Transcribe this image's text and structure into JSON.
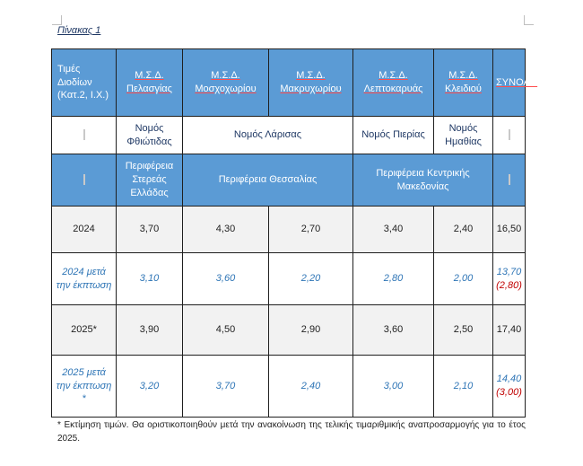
{
  "caption": "Πίνακας 1",
  "header": {
    "first": "Τιμές Διοδίων (Κατ.2, Ι.Χ.)",
    "stations": [
      "Μ.Σ.Δ. Πελασγίας",
      "Μ.Σ.Δ. Μοσχοχωρίου",
      "Μ.Σ.Δ. Μακρυχωρίου",
      "Μ.Σ.Δ. Λεπτοκαρυάς",
      "Μ.Σ.Δ. Κλειδιού"
    ],
    "total": "ΣΥΝΟΛΟ"
  },
  "prefectures": [
    "Νομός Φθιώτιδας",
    "Νομός Λάρισας",
    "Νομός Πιερίας",
    "Νομός Ημαθίας"
  ],
  "regions": [
    "Περιφέρεια Στερεάς Ελλάδας",
    "Περιφέρεια Θεσσαλίας",
    "Περιφέρεια Κεντρικής Μακεδονίας"
  ],
  "rows": {
    "y2024": {
      "label": "2024",
      "values": [
        "3,70",
        "4,30",
        "2,70",
        "3,40",
        "2,40"
      ],
      "total": "16,50"
    },
    "d2024": {
      "label": "2024 μετά την έκπτωση",
      "values": [
        "3,10",
        "3,60",
        "2,20",
        "2,80",
        "2,00"
      ],
      "total": "13,70",
      "diff": "(2,80)"
    },
    "y2025": {
      "label": "2025*",
      "values": [
        "3,90",
        "4,50",
        "2,90",
        "3,60",
        "2,50"
      ],
      "total": "17,40"
    },
    "d2025": {
      "label": "2025 μετά την έκπτωση *",
      "values": [
        "3,20",
        "3,70",
        "2,40",
        "3,00",
        "2,10"
      ],
      "total": "14,40",
      "diff": "(3,00)"
    }
  },
  "footnote": "* Εκτίμηση τιμών. Θα οριστικοποιηθούν μετά την ανακοίνωση της τελικής τιμαριθμικής αναπροσαρμογής για το έτος 2025."
}
